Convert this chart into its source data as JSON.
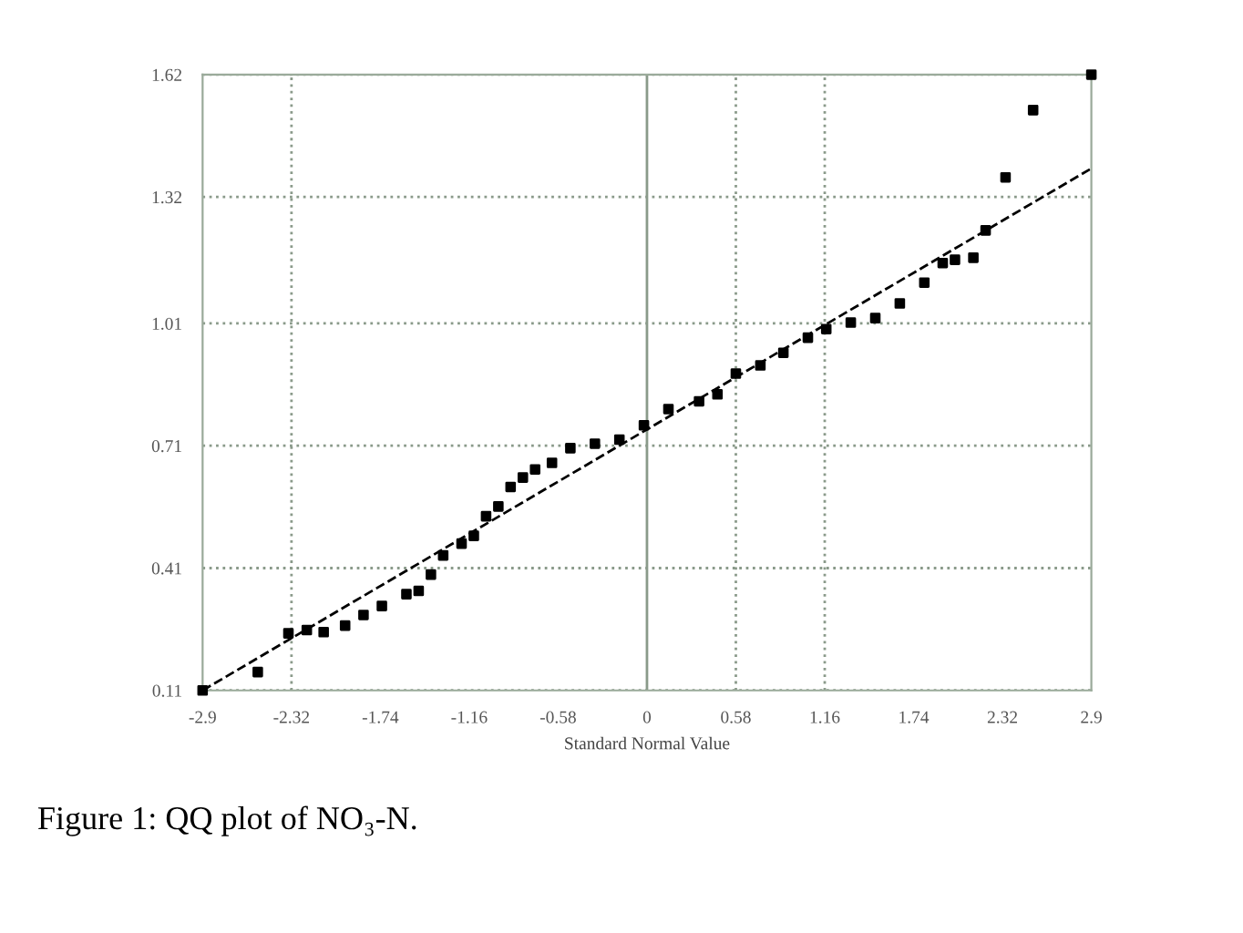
{
  "chart_data": {
    "type": "scatter",
    "xlabel": "Standard Normal Value",
    "annotations": [
      "Figure 1: QQ plot of NO₃-N."
    ],
    "series": [
      {
        "type": "scatter",
        "color": "#000000",
        "marker": "square",
        "x": [
          -2.9,
          -2.54,
          -2.34,
          -2.22,
          -2.11,
          -1.97,
          -1.85,
          -1.73,
          -1.57,
          -1.49,
          -1.41,
          -1.33,
          -1.21,
          -1.13,
          -1.05,
          -0.97,
          -0.89,
          -0.81,
          -0.73,
          -0.62,
          -0.5,
          -0.34,
          -0.18,
          -0.02,
          0.14,
          0.34,
          0.46,
          0.58,
          0.74,
          0.89,
          1.05,
          1.17,
          1.33,
          1.49,
          1.65,
          1.81,
          1.93,
          2.01,
          2.13,
          2.21,
          2.34,
          2.52,
          2.9
        ],
        "values": [
          0.11,
          0.155,
          0.25,
          0.258,
          0.253,
          0.269,
          0.295,
          0.317,
          0.346,
          0.354,
          0.394,
          0.441,
          0.47,
          0.489,
          0.537,
          0.561,
          0.609,
          0.632,
          0.652,
          0.668,
          0.704,
          0.715,
          0.725,
          0.76,
          0.8,
          0.819,
          0.836,
          0.887,
          0.907,
          0.938,
          0.975,
          0.996,
          1.012,
          1.023,
          1.059,
          1.11,
          1.158,
          1.166,
          1.171,
          1.238,
          1.368,
          1.533,
          1.62
        ]
      },
      {
        "type": "line",
        "color": "#000000",
        "line_style": "dashed",
        "x": [
          -2.9,
          2.9
        ],
        "values": [
          0.11,
          1.39
        ]
      }
    ],
    "xlim": [
      -2.9,
      2.9
    ],
    "xticks": [
      -2.9,
      -2.32,
      -1.74,
      -1.16,
      -0.58,
      0,
      0.58,
      1.16,
      1.74,
      2.32,
      2.9
    ],
    "ylim": [
      0.11,
      1.62
    ],
    "yticks": [
      0.11,
      0.41,
      0.71,
      1.01,
      1.32,
      1.62
    ],
    "grid": "y",
    "ref_lines": [
      {
        "axis": "x",
        "value": -2.32,
        "color": "#8a9a8a",
        "line_style": "dotted"
      },
      {
        "axis": "x",
        "value": 0,
        "color": "#8a9a8a",
        "line_style": "solid"
      },
      {
        "axis": "x",
        "value": 0.58,
        "color": "#8a9a8a",
        "line_style": "dotted"
      },
      {
        "axis": "x",
        "value": 1.16,
        "color": "#8a9a8a",
        "line_style": "dotted"
      }
    ]
  }
}
